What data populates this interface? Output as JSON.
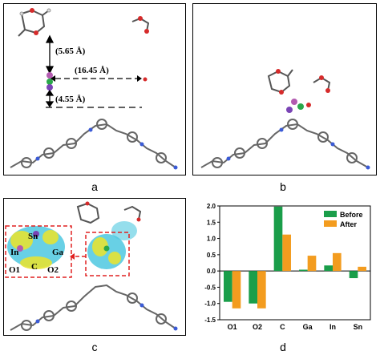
{
  "panels": {
    "a": {
      "label": "a",
      "distance_vertical": "(5.65 Å)",
      "distance_horizontal": "(16.45 Å)",
      "distance_lower": "(4.55 Å)"
    },
    "b": {
      "label": "b"
    },
    "c": {
      "label": "c",
      "atoms": [
        "Sn",
        "In",
        "Ga",
        "O1",
        "C",
        "O2"
      ]
    },
    "d": {
      "label": "d"
    }
  },
  "chart_data": {
    "type": "bar",
    "categories": [
      "O1",
      "O2",
      "C",
      "Ga",
      "In",
      "Sn"
    ],
    "series": [
      {
        "name": "Before",
        "color": "#1a9e4a",
        "values": [
          -0.95,
          -1.0,
          1.98,
          0.04,
          0.17,
          -0.22
        ]
      },
      {
        "name": "After",
        "color": "#f39c1f",
        "values": [
          -1.15,
          -1.15,
          1.12,
          0.47,
          0.55,
          0.13
        ]
      }
    ],
    "ylim": [
      -1.5,
      2.0
    ],
    "yticks": [
      "-1.5",
      "-1.0",
      "-0.5",
      "0.0",
      "0.5",
      "1.0",
      "1.5",
      "2.0"
    ],
    "legend_position": "top-right"
  }
}
